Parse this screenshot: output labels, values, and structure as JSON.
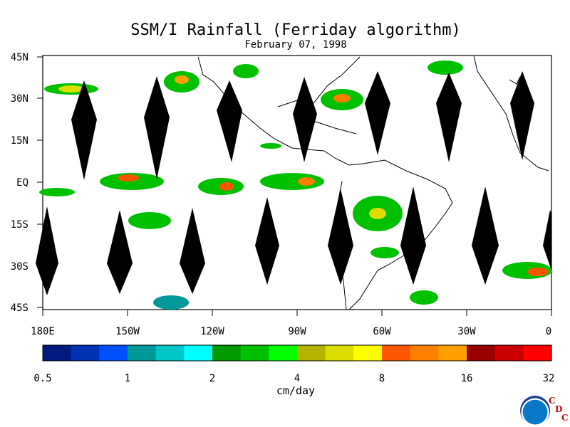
{
  "title": "SSM/I Rainfall (Ferriday algorithm)",
  "subtitle": "February 07, 1998",
  "map": {
    "lat_labels": [
      "45N",
      "30N",
      "15N",
      "EQ",
      "15S",
      "30S",
      "45S"
    ],
    "lon_labels": [
      "180E",
      "150W",
      "120W",
      "90W",
      "60W",
      "30W",
      "0"
    ]
  },
  "colorbar": {
    "colors": [
      "#001a80",
      "#0033b3",
      "#0050ff",
      "#009999",
      "#00c8c8",
      "#00ffff",
      "#009900",
      "#00c000",
      "#00ff00",
      "#b3b300",
      "#dddd00",
      "#ffff00",
      "#ff5500",
      "#ff7f00",
      "#ffa000",
      "#990000",
      "#cc0000",
      "#ff0000"
    ],
    "tick_labels": [
      "0.5",
      "1",
      "2",
      "4",
      "8",
      "16",
      "32"
    ],
    "unit": "cm/day"
  },
  "logo": {
    "name": "NOAA",
    "letters": [
      "C",
      "D",
      "C"
    ]
  }
}
